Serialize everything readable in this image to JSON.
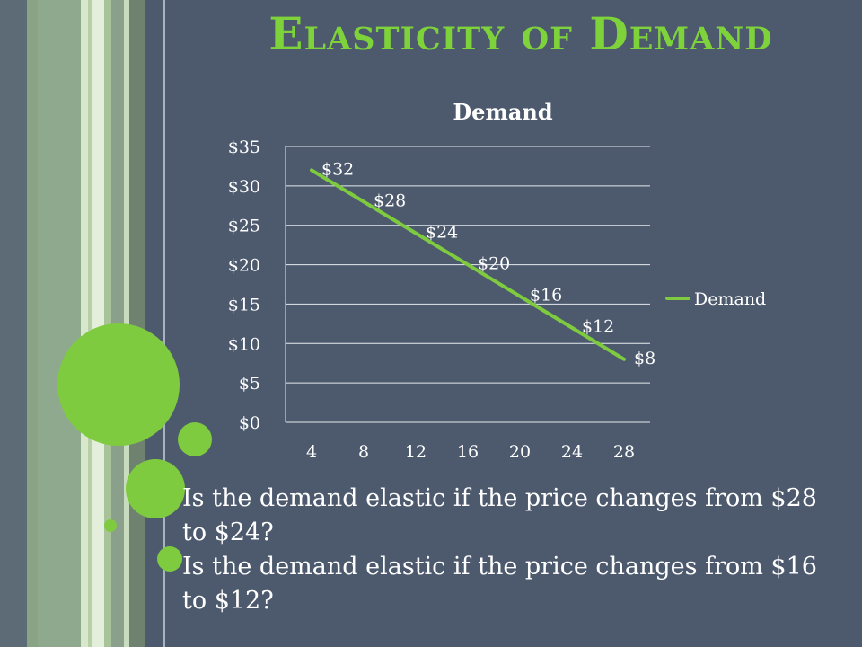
{
  "slide": {
    "title": "Elasticity of Demand",
    "questions": [
      "Is  the demand elastic if the price changes from $28 to $24?",
      "Is the demand elastic if the price changes from $16 to $12?"
    ]
  },
  "colors": {
    "background": "#4d5a6e",
    "accent_green": "#7ed33b",
    "series_line": "#7ecb3f",
    "text": "#ffffff"
  },
  "chart_data": {
    "type": "line",
    "title": "Demand",
    "xlabel": "",
    "ylabel": "",
    "x": [
      4,
      8,
      12,
      16,
      20,
      24,
      28
    ],
    "series": [
      {
        "name": "Demand",
        "values": [
          32,
          28,
          24,
          20,
          16,
          12,
          8
        ],
        "labels": [
          "$32",
          "$28",
          "$24",
          "$20",
          "$16",
          "$12",
          "$8"
        ]
      }
    ],
    "ylim": [
      0,
      35
    ],
    "y_ticks": [
      "$0",
      "$5",
      "$10",
      "$15",
      "$20",
      "$25",
      "$30",
      "$35"
    ],
    "x_ticks": [
      "4",
      "8",
      "12",
      "16",
      "20",
      "24",
      "28"
    ],
    "grid": "horizontal",
    "legend": "right"
  }
}
